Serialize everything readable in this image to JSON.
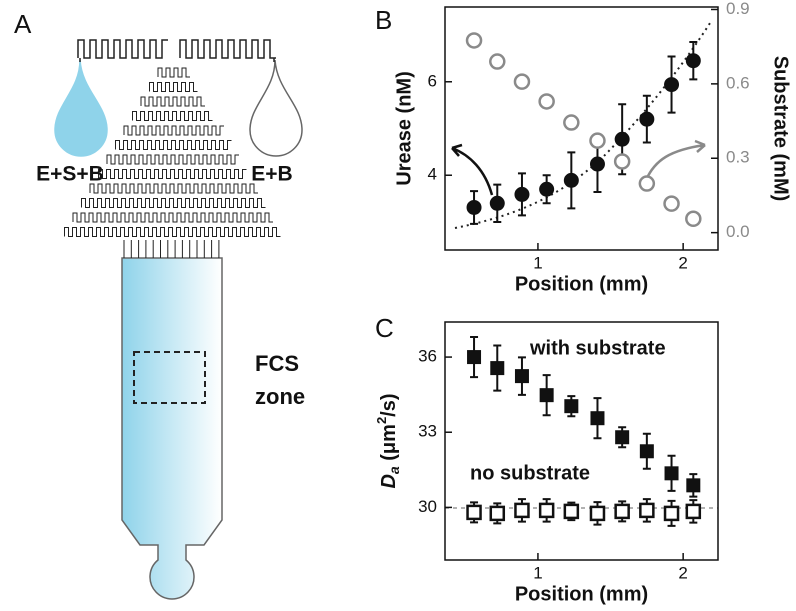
{
  "panel_labels": [
    "A",
    "B",
    "C"
  ],
  "diagram": {
    "inlet_left": "E+S+B",
    "inlet_right": "E+B",
    "zone_label": [
      "FCS",
      "zone"
    ]
  },
  "chart_data": [
    {
      "type": "scatter",
      "x_label": "Position (mm)",
      "y_label": "Urease (nM)",
      "y2_label": "Substrate (mM)",
      "x": [
        0.56,
        0.72,
        0.89,
        1.06,
        1.23,
        1.41,
        1.58,
        1.75,
        1.92,
        2.07
      ],
      "xlim": [
        0.36,
        2.24
      ],
      "xticks": [
        1,
        2
      ],
      "ylim": [
        2.4,
        7.6
      ],
      "yticks": [
        4,
        6
      ],
      "y2lim": [
        -0.07,
        0.91
      ],
      "y2ticks": [
        {
          "value": 0,
          "label": "0.0"
        },
        0.3,
        0.6,
        0.9
      ],
      "series": [
        {
          "color": "#111111",
          "marker": "circle-filled",
          "values": [
            3.31,
            3.4,
            3.59,
            3.7,
            3.89,
            4.24,
            4.77,
            5.2,
            5.94,
            6.45
          ],
          "errors": [
            0.35,
            0.4,
            0.45,
            0.3,
            0.6,
            0.6,
            0.75,
            0.5,
            0.6,
            0.4
          ]
        },
        {
          "color": "#8a8a8a",
          "marker": "circle-open",
          "axis": "y2",
          "values": [
            0.775,
            0.69,
            0.609,
            0.529,
            0.444,
            0.371,
            0.287,
            0.198,
            0.117,
            0.056
          ]
        }
      ]
    },
    {
      "type": "scatter",
      "x_label": "Position (mm)",
      "y_label": [
        "D",
        "a",
        " (μm",
        "2",
        "/s)"
      ],
      "x": [
        0.56,
        0.72,
        0.89,
        1.06,
        1.23,
        1.41,
        1.58,
        1.75,
        1.92,
        2.07
      ],
      "xlim": [
        0.36,
        2.24
      ],
      "xticks": [
        1,
        2
      ],
      "ylim": [
        27.9,
        37.4
      ],
      "yticks": [
        30,
        33,
        36
      ],
      "series": [
        {
          "name": "with substrate",
          "color": "#111111",
          "marker": "square-filled",
          "values": [
            36.0,
            35.56,
            35.24,
            34.48,
            34.04,
            33.56,
            32.8,
            32.24,
            31.36,
            30.88
          ],
          "errors": [
            0.8,
            0.9,
            0.75,
            0.8,
            0.4,
            0.8,
            0.4,
            0.7,
            0.7,
            0.45
          ]
        },
        {
          "name": "no substrate",
          "color": "#111111",
          "marker": "square-open",
          "values": [
            29.8,
            29.76,
            29.88,
            29.88,
            29.84,
            29.76,
            29.84,
            29.88,
            29.76,
            29.84
          ],
          "errors": [
            0.4,
            0.4,
            0.45,
            0.45,
            0.35,
            0.45,
            0.4,
            0.45,
            0.5,
            0.45
          ]
        }
      ]
    }
  ]
}
